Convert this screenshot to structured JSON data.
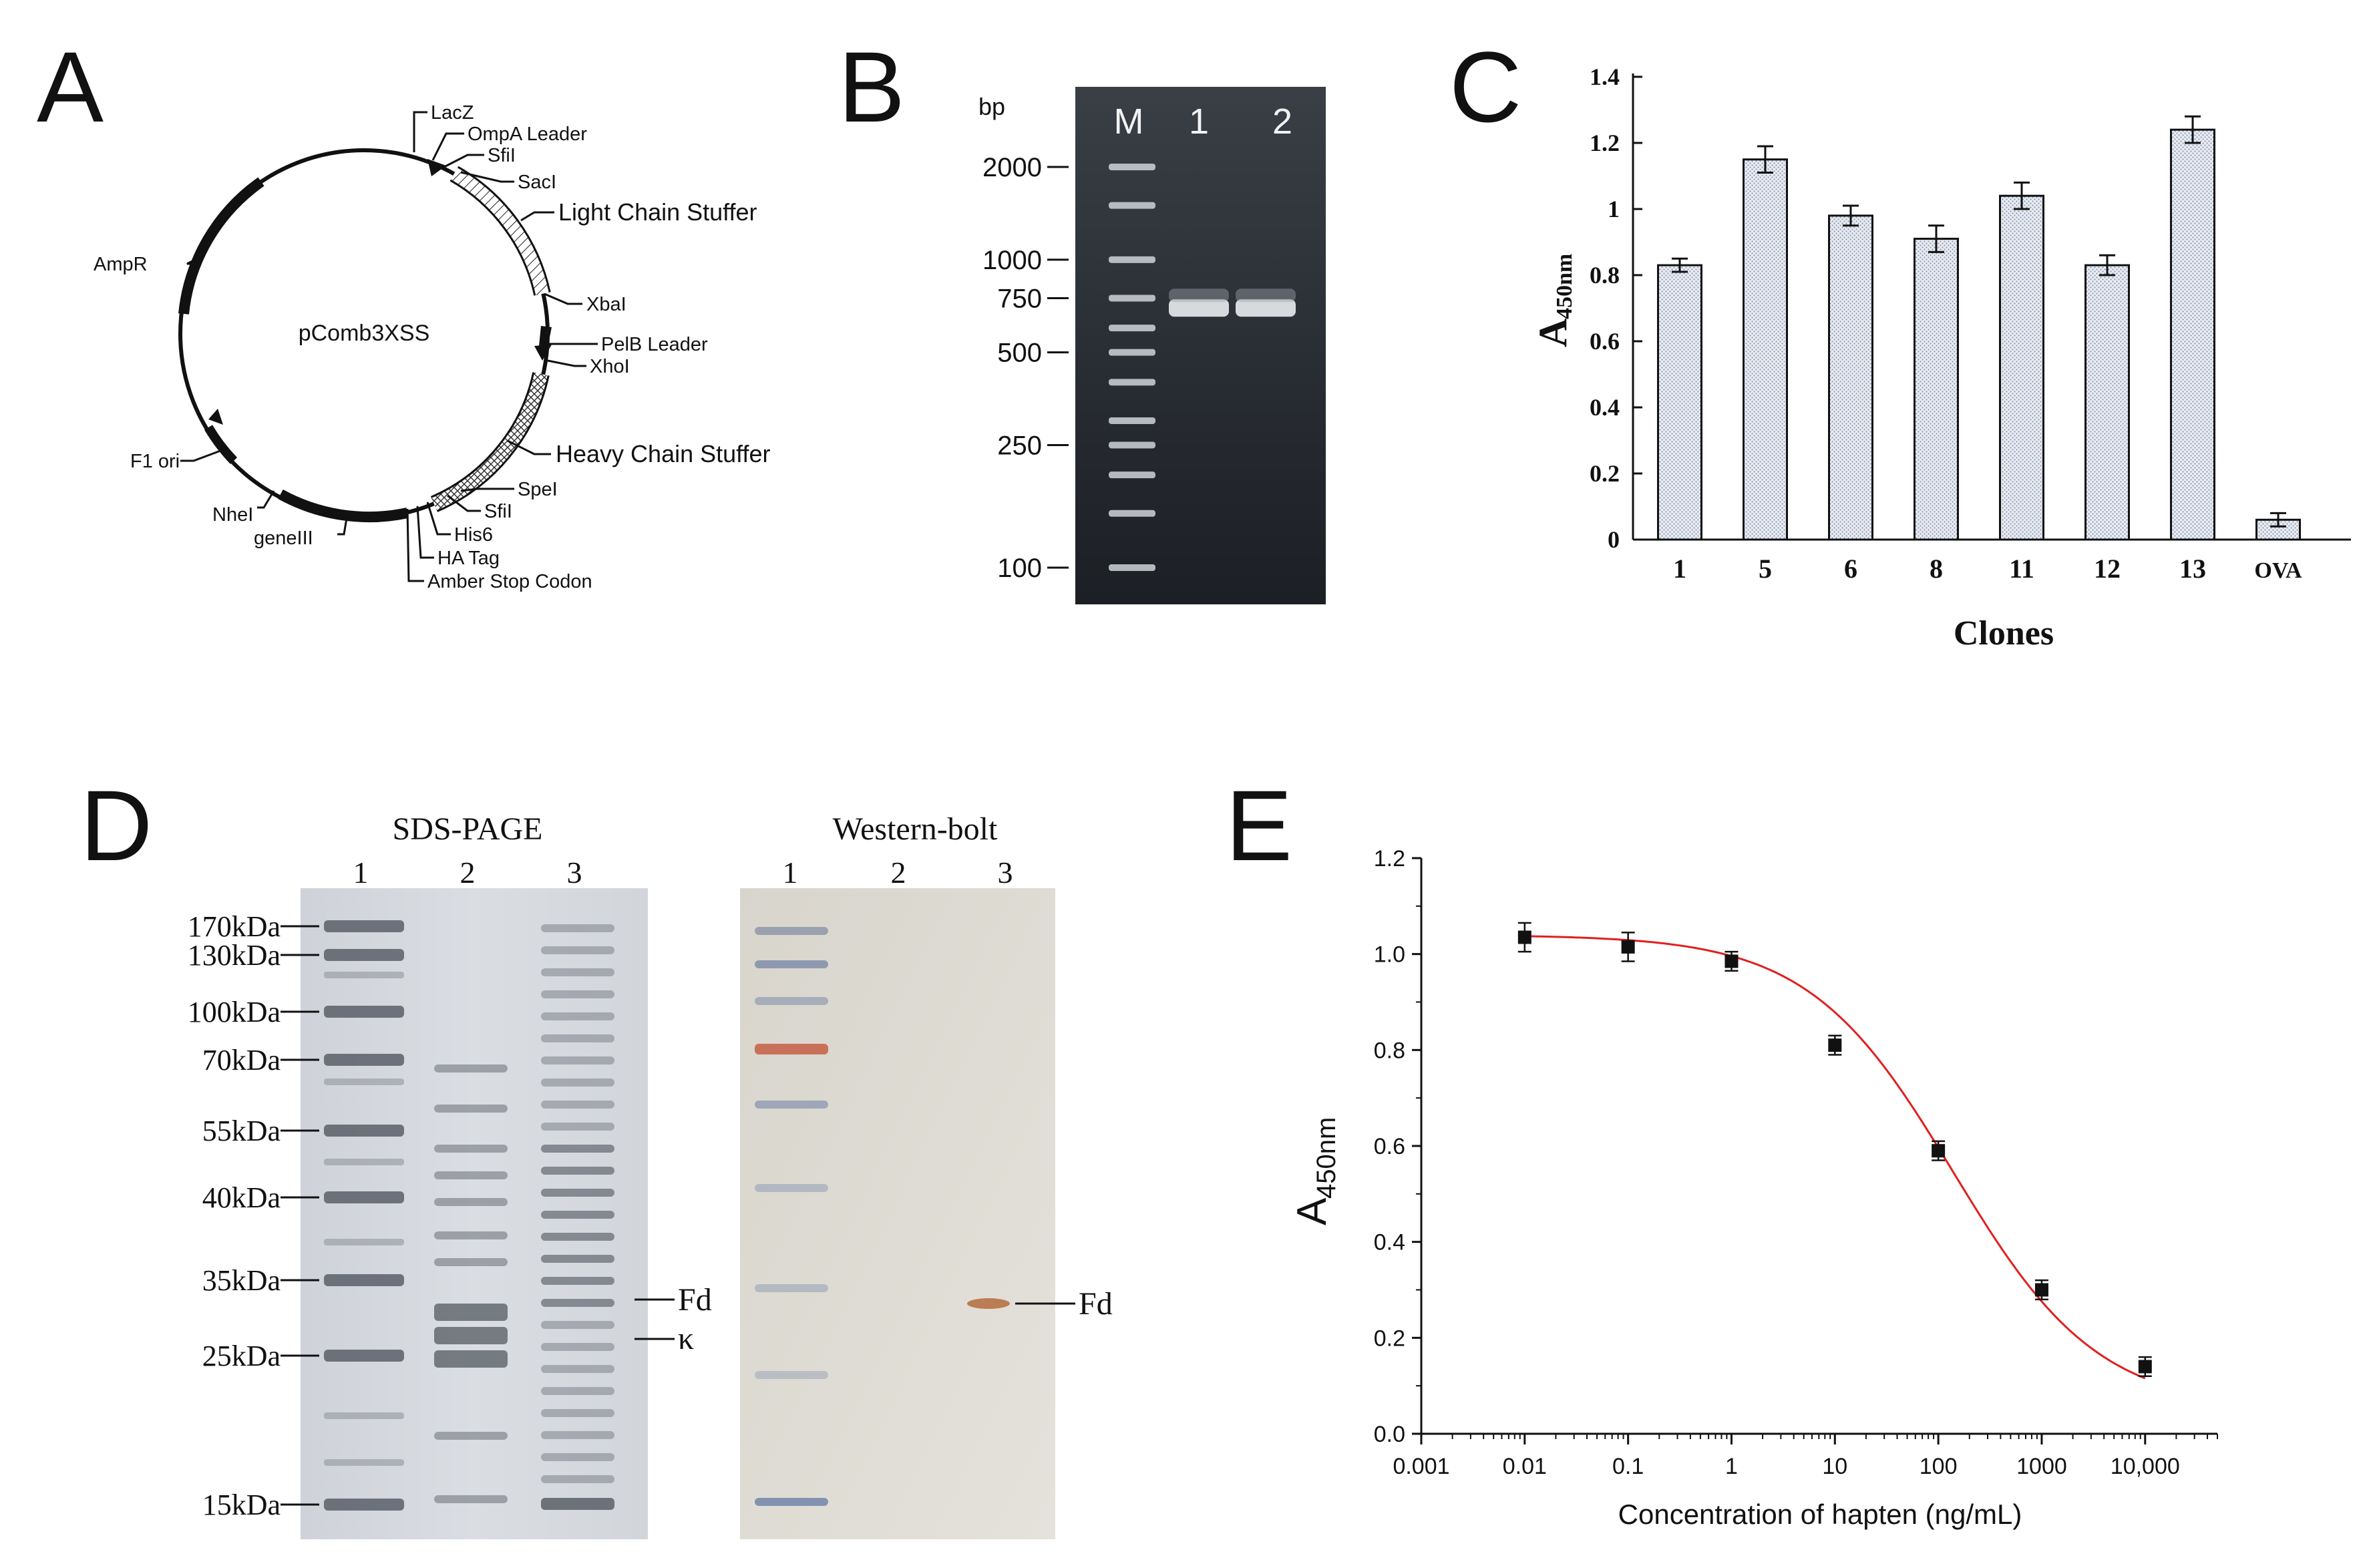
{
  "panels": {
    "A": {
      "letter": "A",
      "vector_name": "pComb3XSS",
      "features": {
        "lacz": "LacZ",
        "ompa": "OmpA Leader",
        "sfi1": "SfiI",
        "sac": "SacI",
        "lcs": "Light Chain Stuffer",
        "xba": "XbaI",
        "pelb": "PelB Leader",
        "xho": "XhoI",
        "hcs": "Heavy Chain Stuffer",
        "spe": "SpeI",
        "sfi2": "SfiI",
        "his": "His6",
        "ha": "HA Tag",
        "amber": "Amber Stop Codon",
        "ampr": "AmpR",
        "f1": "F1 ori",
        "nhe": "NheI",
        "gene3": "geneIII"
      }
    },
    "B": {
      "letter": "B",
      "unit_label": "bp",
      "lane_labels": [
        "M",
        "1",
        "2"
      ],
      "ladder_bp": [
        "2000",
        "1000",
        "750",
        "500",
        "250",
        "100"
      ],
      "band_bp": 700
    },
    "D": {
      "letter": "D",
      "sds_title": "SDS-PAGE",
      "wb_title": "Western-bolt",
      "lane_labels": [
        "1",
        "2",
        "3"
      ],
      "markers": [
        "170kDa",
        "130kDa",
        "100kDa",
        "70kDa",
        "55kDa",
        "40kDa",
        "35kDa",
        "25kDa",
        "15kDa"
      ],
      "band_fd": "Fd",
      "band_kappa": "κ",
      "wb_band": "Fd"
    }
  },
  "chart_data": [
    {
      "panel": "C",
      "letter": "C",
      "type": "bar",
      "categories": [
        "1",
        "5",
        "6",
        "8",
        "11",
        "12",
        "13",
        "OVA"
      ],
      "values": [
        0.83,
        1.15,
        0.98,
        0.91,
        1.04,
        0.83,
        1.24,
        0.06
      ],
      "errors": [
        0.02,
        0.04,
        0.03,
        0.04,
        0.04,
        0.03,
        0.04,
        0.02
      ],
      "ylim": [
        0,
        1.4
      ],
      "yticks": [
        "0",
        "0.2",
        "0.4",
        "0.6",
        "0.8",
        "1",
        "1.2",
        "1.4"
      ],
      "xlabel": "Clones",
      "ylabel_main": "A",
      "ylabel_sub": "450nm",
      "bar_fill": "#dde3ee"
    },
    {
      "panel": "E",
      "letter": "E",
      "type": "scatter",
      "x": [
        0.01,
        0.1,
        1,
        10,
        100,
        1000,
        10000
      ],
      "y": [
        1.035,
        1.015,
        0.985,
        0.81,
        0.59,
        0.3,
        0.14
      ],
      "errors": [
        0.03,
        0.03,
        0.02,
        0.02,
        0.02,
        0.02,
        0.02
      ],
      "xscale": "log",
      "xlim": [
        0.001,
        50000
      ],
      "ylim": [
        0,
        1.2
      ],
      "xticks": [
        "0.001",
        "0.01",
        "0.1",
        "1",
        "10",
        "100",
        "1000",
        "10,000"
      ],
      "yticks": [
        "0.0",
        "0.2",
        "0.4",
        "0.6",
        "0.8",
        "1.0",
        "1.2"
      ],
      "xlabel": "Concentration of hapten (ng/mL)",
      "ylabel_main": "A",
      "ylabel_sub": "450nm",
      "fit_curve": {
        "top": 1.04,
        "bottom": 0.05,
        "ic50": 140,
        "hill": 0.62
      },
      "curve_color": "#e02020",
      "marker_color": "#111111"
    }
  ]
}
